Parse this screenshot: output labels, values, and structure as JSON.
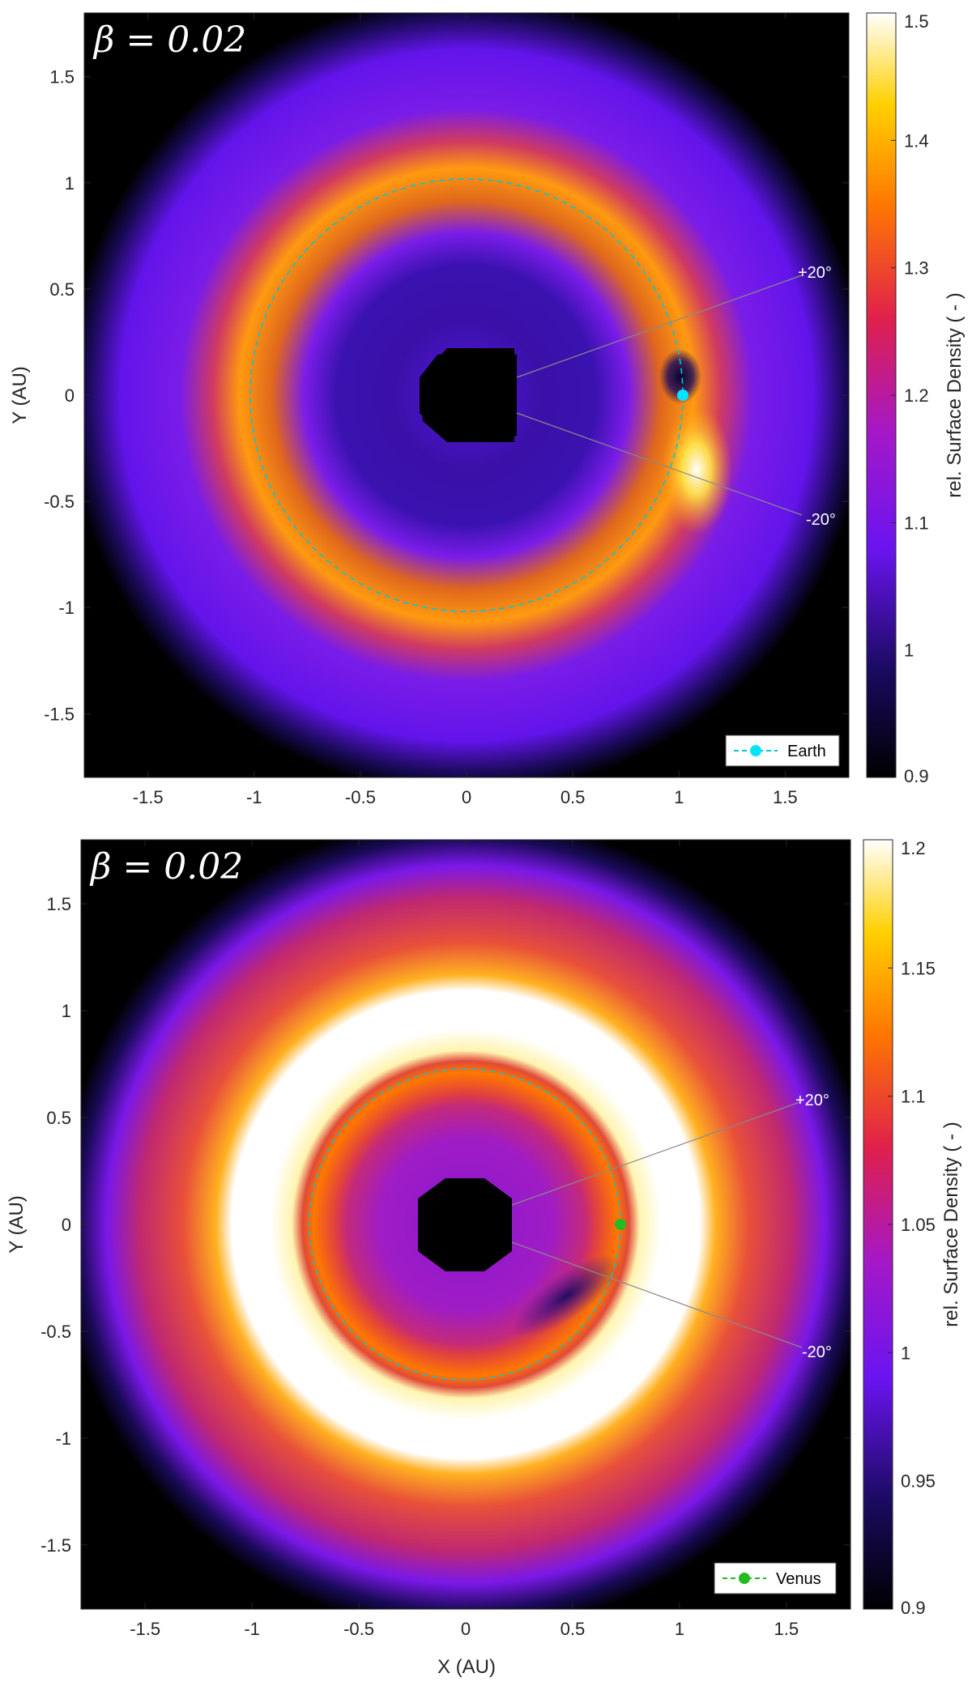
{
  "chart_data": [
    {
      "type": "heatmap",
      "panel": "top",
      "title": "β = 0.02",
      "xlabel": "X (AU)",
      "ylabel": "Y (AU)",
      "xlim": [
        -1.8,
        1.8
      ],
      "ylim": [
        -1.8,
        1.8
      ],
      "xticks": [
        "-1.5",
        "-1",
        "-0.5",
        "0",
        "0.5",
        "1",
        "1.5"
      ],
      "yticks": [
        "1.5",
        "1",
        "0.5",
        "0",
        "-0.5",
        "-1",
        "-1.5"
      ],
      "colorbar": {
        "label": "rel. Surface Density ( - )",
        "range": [
          0.9,
          1.5
        ],
        "ticks": [
          "1.5",
          "1.4",
          "1.3",
          "1.2",
          "1.1",
          "1",
          "0.9"
        ]
      },
      "planet": {
        "name": "Earth",
        "x": 1.0,
        "y": 0.0,
        "orbit_radius": 1.0,
        "color": "#00e5ff"
      },
      "ring_peak_radius": 1.25,
      "inner_mask_radius": 0.22,
      "annotations": [
        "+20°",
        "-20°"
      ],
      "legend": {
        "label": "Earth",
        "position": "bottom-right"
      }
    },
    {
      "type": "heatmap",
      "panel": "bottom",
      "title": "β = 0.02",
      "xlabel": "X (AU)",
      "ylabel": "Y (AU)",
      "xlim": [
        -1.8,
        1.8
      ],
      "ylim": [
        -1.8,
        1.8
      ],
      "xticks": [
        "-1.5",
        "-1",
        "-0.5",
        "0",
        "0.5",
        "1",
        "1.5"
      ],
      "yticks": [
        "1.5",
        "1",
        "0.5",
        "0",
        "-0.5",
        "-1",
        "-1.5"
      ],
      "colorbar": {
        "label": "rel. Surface Density ( - )",
        "range": [
          0.9,
          1.2
        ],
        "ticks": [
          "1.2",
          "1.15",
          "1.1",
          "1.05",
          "1",
          "0.95",
          "0.9"
        ]
      },
      "planet": {
        "name": "Venus",
        "x": 0.72,
        "y": 0.0,
        "orbit_radius": 0.72,
        "color": "#22bb22"
      },
      "ring_peak_radius": 1.1,
      "inner_mask_radius": 0.22,
      "annotations": [
        "+20°",
        "-20°"
      ],
      "legend": {
        "label": "Venus",
        "position": "bottom-right"
      }
    }
  ]
}
